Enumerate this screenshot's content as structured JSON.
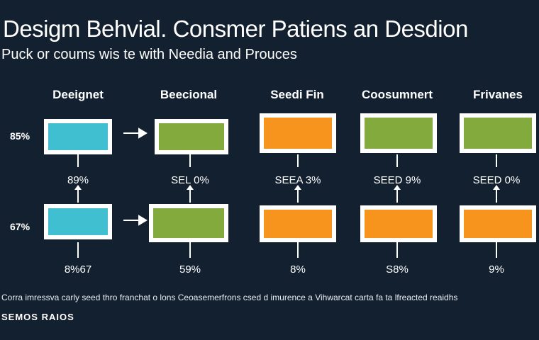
{
  "header": {
    "title": "Desigm Behvial. Consmer Patiens an Desdion",
    "subtitle": "Puck or coums wis te with Needia and Prouces"
  },
  "columns": [
    {
      "label": "Deeignet",
      "row1_value": "89%",
      "row2_value": "8%67"
    },
    {
      "label": "Beecional",
      "row1_value": "SEL 0%",
      "row2_value": "59%"
    },
    {
      "label": "Seedi Fin",
      "row1_value": "SEEA 3%",
      "row2_value": "8%"
    },
    {
      "label": "Coosumnert",
      "row1_value": "SEED 9%",
      "row2_value": "S8%"
    },
    {
      "label": "Frivanes",
      "row1_value": "SEED 0%",
      "row2_value": "9%"
    }
  ],
  "rows": [
    {
      "label": "85%"
    },
    {
      "label": "67%"
    }
  ],
  "colors": {
    "background": "#13202f",
    "cyan": "#3fbfcf",
    "green": "#82aa3c",
    "orange": "#f7941d"
  },
  "footer": {
    "note": "Corra imressva carly seed thro franchat o lons Ceoasemerfrons csed d imurence a Vihwarcat carta fa ta lfreacted reaidhs",
    "label": "SEMOS RAIOS"
  }
}
